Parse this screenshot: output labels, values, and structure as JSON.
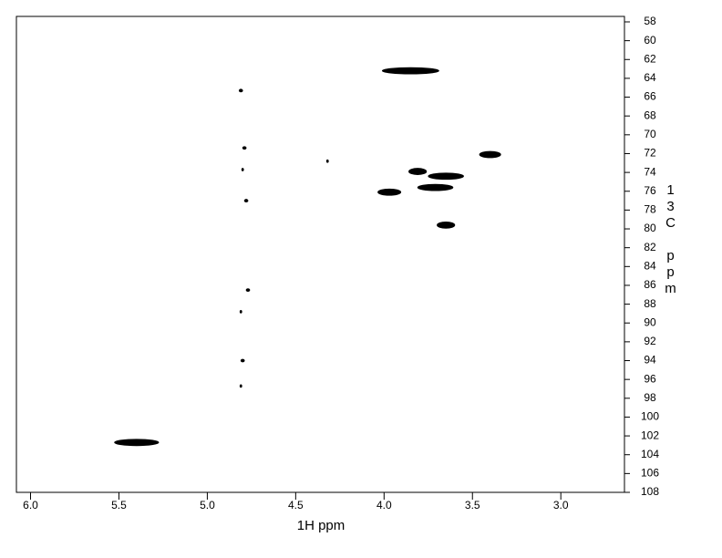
{
  "chart_data": {
    "type": "scatter",
    "x_label": "1H ppm",
    "y_label": "13C ppm",
    "x": [
      3.85,
      3.4,
      3.81,
      3.65,
      3.71,
      3.97,
      3.65,
      5.4,
      4.81,
      4.79,
      4.8,
      4.78,
      4.77,
      4.8,
      4.81,
      4.32,
      4.81
    ],
    "y": [
      63.2,
      72.1,
      73.9,
      74.4,
      75.6,
      76.1,
      79.6,
      102.7,
      65.3,
      71.4,
      73.7,
      77.0,
      86.5,
      94.0,
      96.7,
      72.8,
      88.8
    ],
    "sizes": [
      0.32,
      0.12,
      0.1,
      0.2,
      0.2,
      0.13,
      0.1,
      0.25,
      0.02,
      0.02,
      0.01,
      0.02,
      0.02,
      0.02,
      0.01,
      0.01,
      0.01
    ],
    "color": "#000000",
    "xlim": [
      6.08,
      2.64
    ],
    "ylim": [
      57.42,
      108
    ],
    "xticks": [
      {
        "value": 6.0,
        "label": "6.0"
      },
      5.5,
      {
        "value": 5.0,
        "label": "5.0"
      },
      4.5,
      {
        "value": 4.0,
        "label": "4.0"
      },
      3.5,
      {
        "value": 3.0,
        "label": "3.0"
      }
    ],
    "yticks": [
      58,
      60,
      62,
      64,
      66,
      68,
      70,
      72,
      74,
      76,
      78,
      80,
      82,
      84,
      86,
      88,
      90,
      92,
      94,
      96,
      98,
      100,
      102,
      104,
      106,
      108
    ],
    "y_axis_side": "right"
  }
}
